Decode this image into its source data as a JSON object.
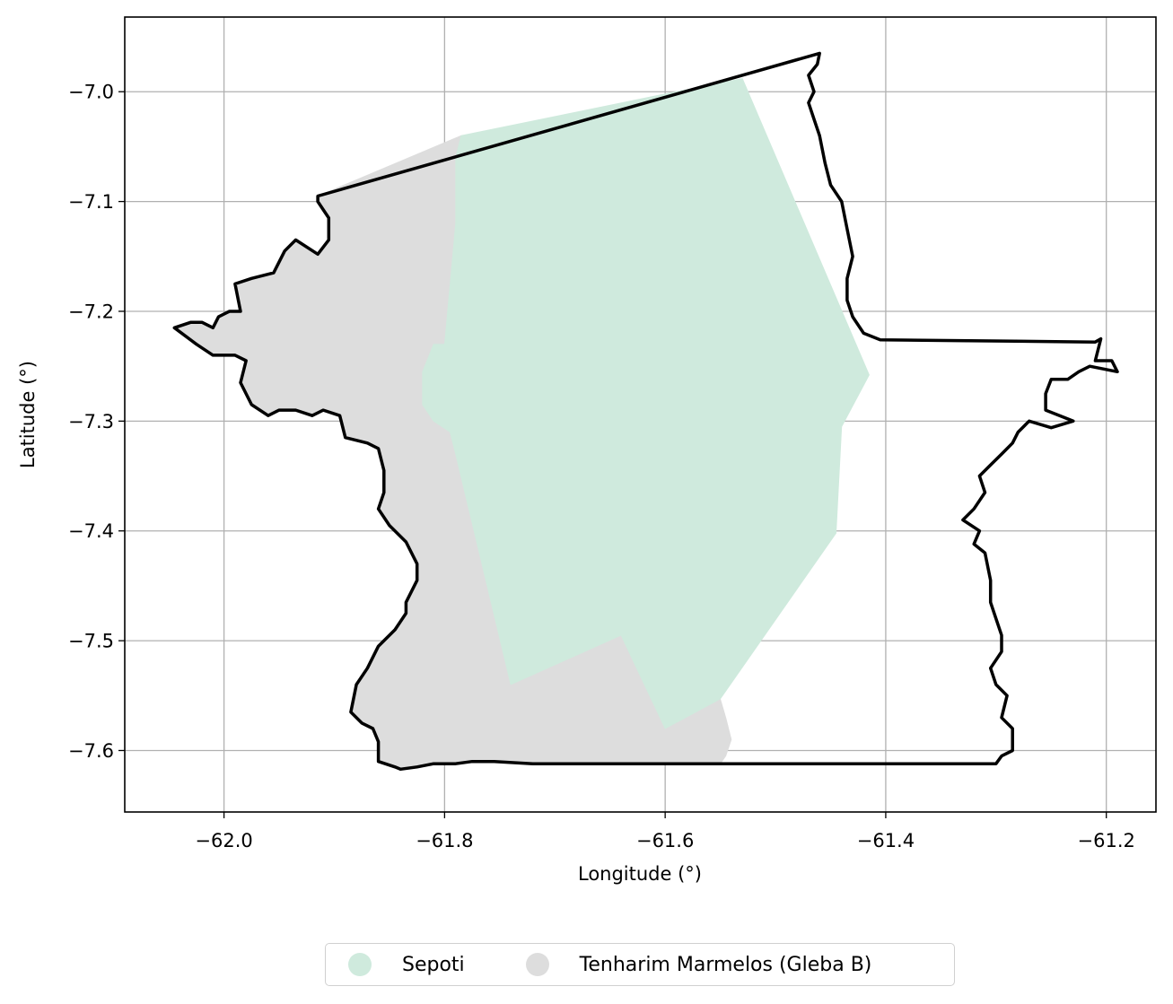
{
  "chart_data": {
    "type": "map",
    "xlabel": "Longitude (°)",
    "ylabel": "Latitude (°)",
    "xlim": [
      -62.09,
      -61.155
    ],
    "ylim": [
      -7.656,
      -6.932
    ],
    "x_ticks": [
      -62.0,
      -61.8,
      -61.6,
      -61.4,
      -61.2
    ],
    "x_tick_labels": [
      "−62.0",
      "−61.8",
      "−61.6",
      "−61.4",
      "−61.2"
    ],
    "y_ticks": [
      -7.0,
      -7.1,
      -7.2,
      -7.3,
      -7.4,
      -7.5,
      -7.6
    ],
    "y_tick_labels": [
      "−7.0",
      "−7.1",
      "−7.2",
      "−7.3",
      "−7.4",
      "−7.5",
      "−7.6"
    ],
    "grid": true,
    "legend_placement": "bottom-center",
    "colors": {
      "sepoti": "#cfeadd",
      "tenharim": "#dddddd",
      "boundary": "#000000",
      "grid": "#b0b0b0"
    },
    "series": [
      {
        "name": "Tenharim Marmelos (Gleba B)",
        "color": "#dddddd",
        "polygon": [
          [
            -61.915,
            -7.095
          ],
          [
            -61.915,
            -7.1
          ],
          [
            -61.905,
            -7.115
          ],
          [
            -61.905,
            -7.135
          ],
          [
            -61.915,
            -7.148
          ],
          [
            -61.935,
            -7.135
          ],
          [
            -61.945,
            -7.145
          ],
          [
            -61.955,
            -7.165
          ],
          [
            -61.975,
            -7.17
          ],
          [
            -61.99,
            -7.175
          ],
          [
            -61.985,
            -7.2
          ],
          [
            -61.995,
            -7.2
          ],
          [
            -62.005,
            -7.205
          ],
          [
            -62.01,
            -7.215
          ],
          [
            -62.02,
            -7.21
          ],
          [
            -62.03,
            -7.21
          ],
          [
            -62.045,
            -7.215
          ],
          [
            -62.025,
            -7.23
          ],
          [
            -62.01,
            -7.24
          ],
          [
            -61.99,
            -7.24
          ],
          [
            -61.98,
            -7.245
          ],
          [
            -61.985,
            -7.265
          ],
          [
            -61.975,
            -7.285
          ],
          [
            -61.96,
            -7.295
          ],
          [
            -61.95,
            -7.29
          ],
          [
            -61.935,
            -7.29
          ],
          [
            -61.92,
            -7.295
          ],
          [
            -61.91,
            -7.29
          ],
          [
            -61.895,
            -7.295
          ],
          [
            -61.89,
            -7.315
          ],
          [
            -61.87,
            -7.32
          ],
          [
            -61.86,
            -7.325
          ],
          [
            -61.855,
            -7.345
          ],
          [
            -61.855,
            -7.365
          ],
          [
            -61.86,
            -7.38
          ],
          [
            -61.85,
            -7.395
          ],
          [
            -61.835,
            -7.41
          ],
          [
            -61.825,
            -7.43
          ],
          [
            -61.825,
            -7.445
          ],
          [
            -61.835,
            -7.465
          ],
          [
            -61.835,
            -7.475
          ],
          [
            -61.845,
            -7.49
          ],
          [
            -61.86,
            -7.505
          ],
          [
            -61.87,
            -7.525
          ],
          [
            -61.88,
            -7.54
          ],
          [
            -61.885,
            -7.565
          ],
          [
            -61.875,
            -7.575
          ],
          [
            -61.865,
            -7.58
          ],
          [
            -61.86,
            -7.592
          ],
          [
            -61.86,
            -7.61
          ],
          [
            -61.845,
            -7.615
          ],
          [
            -61.84,
            -7.617
          ],
          [
            -61.825,
            -7.615
          ],
          [
            -61.81,
            -7.612
          ],
          [
            -61.79,
            -7.612
          ],
          [
            -61.775,
            -7.61
          ],
          [
            -61.755,
            -7.61
          ],
          [
            -61.72,
            -7.612
          ],
          [
            -61.55,
            -7.612
          ],
          [
            -61.545,
            -7.605
          ],
          [
            -61.54,
            -7.59
          ],
          [
            -61.545,
            -7.57
          ],
          [
            -61.55,
            -7.553
          ],
          [
            -61.6,
            -7.58
          ],
          [
            -61.64,
            -7.495
          ],
          [
            -61.74,
            -7.54
          ],
          [
            -61.79,
            -7.33
          ],
          [
            -61.795,
            -7.31
          ],
          [
            -61.81,
            -7.3
          ],
          [
            -61.82,
            -7.285
          ],
          [
            -61.82,
            -7.255
          ],
          [
            -61.81,
            -7.23
          ],
          [
            -61.8,
            -7.23
          ],
          [
            -61.79,
            -7.12
          ],
          [
            -61.79,
            -7.06
          ],
          [
            -61.785,
            -7.04
          ],
          [
            -61.915,
            -7.095
          ]
        ]
      },
      {
        "name": "Sepoti",
        "color": "#cfeadd",
        "polygon": [
          [
            -61.785,
            -7.04
          ],
          [
            -61.6,
            -7.002
          ],
          [
            -61.53,
            -6.988
          ],
          [
            -61.415,
            -7.258
          ],
          [
            -61.44,
            -7.305
          ],
          [
            -61.445,
            -7.402
          ],
          [
            -61.55,
            -7.553
          ],
          [
            -61.6,
            -7.58
          ],
          [
            -61.64,
            -7.495
          ],
          [
            -61.74,
            -7.54
          ],
          [
            -61.79,
            -7.33
          ],
          [
            -61.795,
            -7.31
          ],
          [
            -61.81,
            -7.3
          ],
          [
            -61.82,
            -7.285
          ],
          [
            -61.82,
            -7.255
          ],
          [
            -61.81,
            -7.23
          ],
          [
            -61.8,
            -7.23
          ],
          [
            -61.79,
            -7.12
          ],
          [
            -61.79,
            -7.06
          ],
          [
            -61.785,
            -7.04
          ]
        ]
      }
    ],
    "boundary": [
      [
        -61.915,
        -7.095
      ],
      [
        -61.46,
        -6.965
      ],
      [
        -61.462,
        -6.975
      ],
      [
        -61.47,
        -6.985
      ],
      [
        -61.465,
        -7.0
      ],
      [
        -61.47,
        -7.01
      ],
      [
        -61.465,
        -7.025
      ],
      [
        -61.46,
        -7.04
      ],
      [
        -61.455,
        -7.065
      ],
      [
        -61.45,
        -7.085
      ],
      [
        -61.44,
        -7.1
      ],
      [
        -61.435,
        -7.125
      ],
      [
        -61.43,
        -7.15
      ],
      [
        -61.435,
        -7.17
      ],
      [
        -61.435,
        -7.19
      ],
      [
        -61.43,
        -7.205
      ],
      [
        -61.42,
        -7.22
      ],
      [
        -61.405,
        -7.226
      ],
      [
        -61.21,
        -7.228
      ],
      [
        -61.205,
        -7.225
      ],
      [
        -61.21,
        -7.245
      ],
      [
        -61.195,
        -7.245
      ],
      [
        -61.19,
        -7.255
      ],
      [
        -61.215,
        -7.25
      ],
      [
        -61.225,
        -7.255
      ],
      [
        -61.235,
        -7.262
      ],
      [
        -61.25,
        -7.262
      ],
      [
        -61.255,
        -7.275
      ],
      [
        -61.255,
        -7.29
      ],
      [
        -61.23,
        -7.3
      ],
      [
        -61.25,
        -7.306
      ],
      [
        -61.27,
        -7.3
      ],
      [
        -61.28,
        -7.31
      ],
      [
        -61.285,
        -7.32
      ],
      [
        -61.295,
        -7.33
      ],
      [
        -61.305,
        -7.34
      ],
      [
        -61.315,
        -7.35
      ],
      [
        -61.31,
        -7.365
      ],
      [
        -61.32,
        -7.38
      ],
      [
        -61.33,
        -7.39
      ],
      [
        -61.315,
        -7.4
      ],
      [
        -61.32,
        -7.412
      ],
      [
        -61.31,
        -7.42
      ],
      [
        -61.305,
        -7.445
      ],
      [
        -61.305,
        -7.465
      ],
      [
        -61.3,
        -7.48
      ],
      [
        -61.295,
        -7.495
      ],
      [
        -61.295,
        -7.51
      ],
      [
        -61.305,
        -7.525
      ],
      [
        -61.3,
        -7.54
      ],
      [
        -61.29,
        -7.55
      ],
      [
        -61.295,
        -7.57
      ],
      [
        -61.285,
        -7.58
      ],
      [
        -61.285,
        -7.6
      ],
      [
        -61.295,
        -7.605
      ],
      [
        -61.3,
        -7.612
      ],
      [
        -61.72,
        -7.612
      ],
      [
        -61.755,
        -7.61
      ],
      [
        -61.775,
        -7.61
      ],
      [
        -61.79,
        -7.612
      ],
      [
        -61.81,
        -7.612
      ],
      [
        -61.825,
        -7.615
      ],
      [
        -61.84,
        -7.617
      ],
      [
        -61.845,
        -7.615
      ],
      [
        -61.86,
        -7.61
      ],
      [
        -61.86,
        -7.592
      ],
      [
        -61.865,
        -7.58
      ],
      [
        -61.875,
        -7.575
      ],
      [
        -61.885,
        -7.565
      ],
      [
        -61.88,
        -7.54
      ],
      [
        -61.87,
        -7.525
      ],
      [
        -61.86,
        -7.505
      ],
      [
        -61.845,
        -7.49
      ],
      [
        -61.835,
        -7.475
      ],
      [
        -61.835,
        -7.465
      ],
      [
        -61.825,
        -7.445
      ],
      [
        -61.825,
        -7.43
      ],
      [
        -61.835,
        -7.41
      ],
      [
        -61.85,
        -7.395
      ],
      [
        -61.86,
        -7.38
      ],
      [
        -61.855,
        -7.365
      ],
      [
        -61.855,
        -7.345
      ],
      [
        -61.86,
        -7.325
      ],
      [
        -61.87,
        -7.32
      ],
      [
        -61.89,
        -7.315
      ],
      [
        -61.895,
        -7.295
      ],
      [
        -61.91,
        -7.29
      ],
      [
        -61.92,
        -7.295
      ],
      [
        -61.935,
        -7.29
      ],
      [
        -61.95,
        -7.29
      ],
      [
        -61.96,
        -7.295
      ],
      [
        -61.975,
        -7.285
      ],
      [
        -61.985,
        -7.265
      ],
      [
        -61.98,
        -7.245
      ],
      [
        -61.99,
        -7.24
      ],
      [
        -62.01,
        -7.24
      ],
      [
        -62.025,
        -7.23
      ],
      [
        -62.045,
        -7.215
      ],
      [
        -62.03,
        -7.21
      ],
      [
        -62.02,
        -7.21
      ],
      [
        -62.01,
        -7.215
      ],
      [
        -62.005,
        -7.205
      ],
      [
        -61.995,
        -7.2
      ],
      [
        -61.985,
        -7.2
      ],
      [
        -61.99,
        -7.175
      ],
      [
        -61.975,
        -7.17
      ],
      [
        -61.955,
        -7.165
      ],
      [
        -61.945,
        -7.145
      ],
      [
        -61.935,
        -7.135
      ],
      [
        -61.915,
        -7.148
      ],
      [
        -61.905,
        -7.135
      ],
      [
        -61.905,
        -7.115
      ],
      [
        -61.915,
        -7.1
      ],
      [
        -61.915,
        -7.095
      ]
    ]
  },
  "legend": {
    "items": [
      {
        "label": "Sepoti",
        "color": "#cfeadd"
      },
      {
        "label": "Tenharim Marmelos (Gleba B)",
        "color": "#dddddd"
      }
    ]
  }
}
